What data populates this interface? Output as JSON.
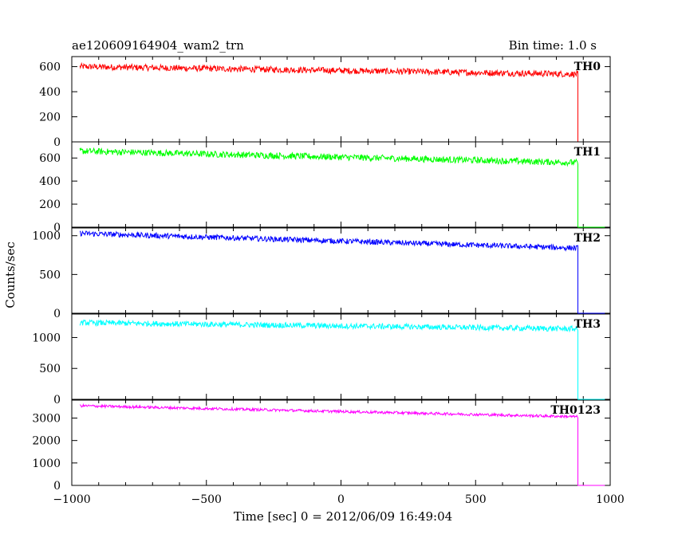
{
  "header": {
    "title": "ae120609164904_wam2_trn",
    "bin_time": "Bin time: 1.0 s"
  },
  "chart_data": {
    "type": "line",
    "xlabel": "Time [sec] 0 = 2012/06/09 16:49:04",
    "ylabel": "Counts/sec",
    "xlim": [
      -1000,
      1000
    ],
    "x_ticks": [
      -1000,
      -500,
      0,
      500,
      1000
    ],
    "x_tick_labels": [
      "−1000",
      "−500",
      "0",
      "500",
      "1000"
    ],
    "data_start": -970,
    "drop_time": 880,
    "data_end": 980,
    "panels": [
      {
        "name": "TH0",
        "color": "#ff0000",
        "ylim": [
          0,
          680
        ],
        "y_ticks": [
          0,
          200,
          400,
          600
        ],
        "y_tick_labels": [
          "0",
          "200",
          "400",
          "600"
        ],
        "start_level": 600,
        "end_level": 540,
        "noise": 25,
        "after_drop": 0
      },
      {
        "name": "TH1",
        "color": "#00ff00",
        "ylim": [
          0,
          740
        ],
        "y_ticks": [
          0,
          200,
          400,
          600
        ],
        "y_tick_labels": [
          "0",
          "200",
          "400",
          "600"
        ],
        "start_level": 660,
        "end_level": 560,
        "noise": 28,
        "after_drop": 0
      },
      {
        "name": "TH2",
        "color": "#0000ff",
        "ylim": [
          0,
          1100
        ],
        "y_ticks": [
          0,
          500,
          1000
        ],
        "y_tick_labels": [
          "0",
          "500",
          "1000"
        ],
        "start_level": 1030,
        "end_level": 840,
        "noise": 35,
        "after_drop": 0
      },
      {
        "name": "TH3",
        "color": "#00ffff",
        "ylim": [
          0,
          1380
        ],
        "y_ticks": [
          0,
          500,
          1000
        ],
        "y_tick_labels": [
          "0",
          "500",
          "1000"
        ],
        "start_level": 1240,
        "end_level": 1140,
        "noise": 45,
        "after_drop": 0
      },
      {
        "name": "TH0123",
        "color": "#ff00ff",
        "ylim": [
          0,
          3800
        ],
        "y_ticks": [
          0,
          1000,
          2000,
          3000
        ],
        "y_tick_labels": [
          "0",
          "1000",
          "2000",
          "3000"
        ],
        "start_level": 3550,
        "end_level": 3060,
        "noise": 60,
        "after_drop": 0
      }
    ]
  }
}
